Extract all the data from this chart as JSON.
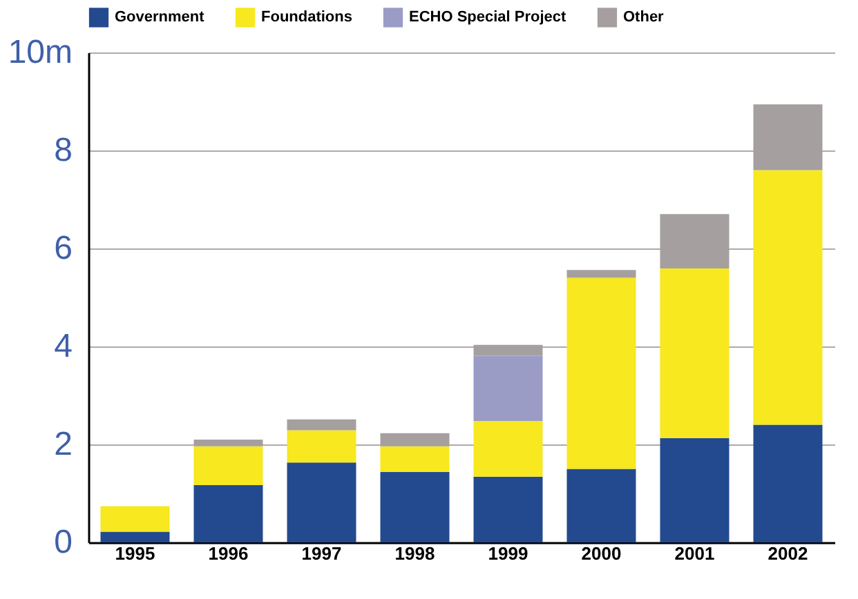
{
  "chart_data": {
    "type": "bar",
    "stacked": true,
    "categories": [
      "1995",
      "1996",
      "1997",
      "1998",
      "1999",
      "2000",
      "2001",
      "2002"
    ],
    "series": [
      {
        "name": "Government",
        "color": "#234a8e",
        "values": [
          0.22,
          1.17,
          1.63,
          1.44,
          1.34,
          1.5,
          2.13,
          2.4
        ]
      },
      {
        "name": "Foundations",
        "color": "#f7e81f",
        "values": [
          0.52,
          0.79,
          0.66,
          0.52,
          1.14,
          3.9,
          3.46,
          5.2
        ]
      },
      {
        "name": "ECHO Special Project",
        "color": "#9a9cc6",
        "values": [
          0,
          0,
          0,
          0,
          1.33,
          0,
          0,
          0
        ]
      },
      {
        "name": "Other",
        "color": "#a59f9f",
        "values": [
          0,
          0.14,
          0.22,
          0.27,
          0.22,
          0.16,
          1.11,
          1.34
        ]
      }
    ],
    "ylim": [
      0,
      10
    ],
    "yticks": [
      0,
      2,
      4,
      6,
      8,
      {
        "value": 10,
        "label": "10m"
      }
    ],
    "grid": "y",
    "legend": "top"
  }
}
